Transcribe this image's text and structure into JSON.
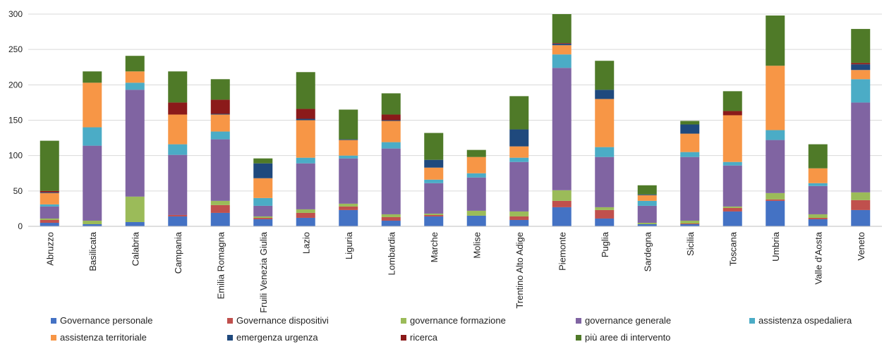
{
  "chart_data": {
    "type": "bar",
    "stacked": true,
    "ylim": [
      0,
      300
    ],
    "yticks": [
      "0",
      "50",
      "100",
      "150",
      "200",
      "250",
      "300"
    ],
    "grid": true,
    "legend_position": "bottom",
    "categories": [
      "Abruzzo",
      "Basilicata",
      "Calabria",
      "Campania",
      "Emilia Romagna",
      "Fruili Venezia Giulia",
      "Lazio",
      "Liguria",
      "Lombardia",
      "Marche",
      "Molise",
      "Trentino Alto Adige",
      "Piemonte",
      "Puglia",
      "Sardegna",
      "Sicilia",
      "Toscana",
      "Umbria",
      "Valle d'Aosta",
      "Veneto"
    ],
    "series": [
      {
        "name": "Governance personale",
        "color": "#4472c4",
        "values": [
          5,
          3,
          6,
          14,
          19,
          10,
          12,
          23,
          8,
          14,
          15,
          9,
          27,
          11,
          3,
          3,
          21,
          36,
          10,
          23
        ]
      },
      {
        "name": "Governance dispositivi",
        "color": "#c0504d",
        "values": [
          4,
          0,
          0,
          2,
          11,
          2,
          7,
          5,
          5,
          2,
          0,
          5,
          9,
          12,
          0,
          1,
          5,
          2,
          2,
          14
        ]
      },
      {
        "name": "governance formazione",
        "color": "#9bbb59",
        "values": [
          2,
          5,
          36,
          0,
          6,
          2,
          5,
          4,
          4,
          2,
          7,
          7,
          15,
          4,
          2,
          4,
          2,
          9,
          5,
          11
        ]
      },
      {
        "name": "governance generale",
        "color": "#8064a2",
        "values": [
          17,
          106,
          151,
          85,
          87,
          15,
          65,
          64,
          93,
          43,
          47,
          70,
          173,
          71,
          24,
          90,
          58,
          75,
          40,
          127
        ]
      },
      {
        "name": "assistenza ospedaliera",
        "color": "#4bacc6",
        "values": [
          3,
          26,
          10,
          15,
          11,
          11,
          8,
          4,
          9,
          5,
          6,
          6,
          19,
          14,
          7,
          7,
          5,
          14,
          4,
          33
        ]
      },
      {
        "name": "assistenza territoriale",
        "color": "#f79646",
        "values": [
          16,
          63,
          16,
          42,
          24,
          28,
          53,
          22,
          30,
          17,
          23,
          16,
          13,
          68,
          8,
          26,
          66,
          91,
          21,
          13
        ]
      },
      {
        "name": "emergenza urgenza",
        "color": "#1f497d",
        "values": [
          1,
          0,
          0,
          0,
          1,
          21,
          2,
          1,
          1,
          11,
          0,
          24,
          2,
          13,
          1,
          13,
          0,
          0,
          0,
          8
        ]
      },
      {
        "name": "ricerca",
        "color": "#8b1a1a",
        "values": [
          2,
          0,
          0,
          17,
          20,
          0,
          14,
          0,
          8,
          0,
          0,
          0,
          1,
          0,
          0,
          0,
          6,
          0,
          0,
          2
        ]
      },
      {
        "name": "più aree di intervento",
        "color": "#4f7a28",
        "values": [
          71,
          16,
          22,
          44,
          29,
          7,
          52,
          42,
          30,
          38,
          10,
          47,
          41,
          41,
          13,
          5,
          28,
          71,
          34,
          48
        ]
      }
    ]
  }
}
